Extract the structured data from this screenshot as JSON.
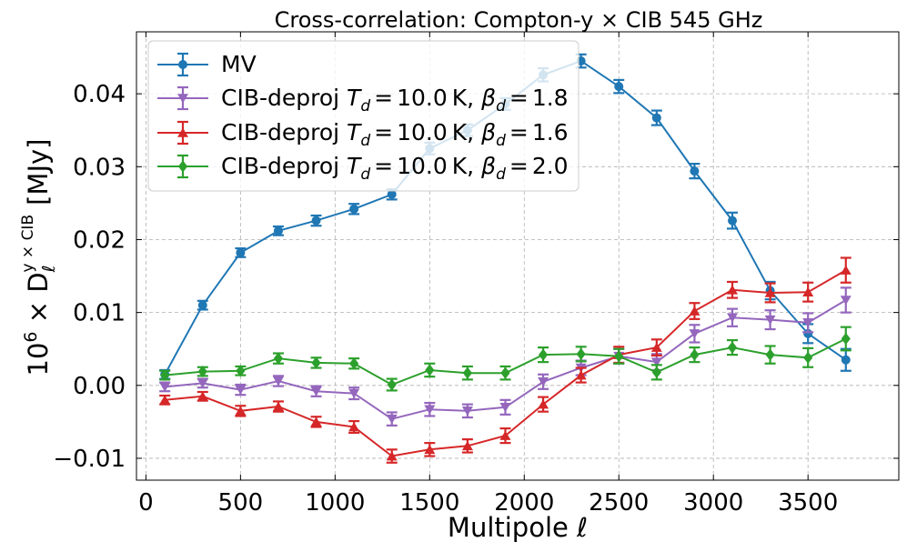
{
  "chart_data": {
    "type": "line",
    "title": "Cross-correlation: Compton-y × CIB 545 GHz",
    "xlabel": "Multipole ℓ",
    "ylabel": "10⁶ × D_ℓ^{y×CIB} [MJy]",
    "ylabel_parts": {
      "prefix": "10",
      "exp": "6",
      "times": " × D",
      "sub": "ℓ",
      "sup": "y × CIB",
      "unit": "[MJy]"
    },
    "xlim": [
      -50,
      3980
    ],
    "ylim": [
      -0.013,
      0.0485
    ],
    "grid": true,
    "legend_position": "upper-left",
    "x_ticks": [
      0,
      500,
      1000,
      1500,
      2000,
      2500,
      3000,
      3500
    ],
    "x_tick_labels": [
      "0",
      "500",
      "1000",
      "1500",
      "2000",
      "2500",
      "3000",
      "3500"
    ],
    "y_ticks": [
      -0.01,
      0.0,
      0.01,
      0.02,
      0.03,
      0.04
    ],
    "y_tick_labels": [
      "−0.01",
      "0.00",
      "0.01",
      "0.02",
      "0.03",
      "0.04"
    ],
    "x": [
      100,
      300,
      500,
      700,
      900,
      1100,
      1300,
      1500,
      1700,
      1900,
      2100,
      2300,
      2500,
      2700,
      2900,
      3100,
      3300,
      3500,
      3700
    ],
    "series": [
      {
        "name": "MV",
        "legend_label": "MV",
        "color": "#1f77b4",
        "marker": "circle",
        "values": [
          0.0015,
          0.011,
          0.0182,
          0.0212,
          0.0226,
          0.0242,
          0.0262,
          0.0325,
          0.035,
          0.0386,
          0.0426,
          0.0445,
          0.041,
          0.0367,
          0.0294,
          0.0226,
          0.013,
          0.0071,
          0.0035
        ],
        "errors": [
          0.0006,
          0.0006,
          0.0006,
          0.0006,
          0.0007,
          0.0007,
          0.0007,
          0.0008,
          0.0008,
          0.0008,
          0.0009,
          0.0009,
          0.0009,
          0.001,
          0.001,
          0.0011,
          0.0012,
          0.0013,
          0.0015
        ]
      },
      {
        "name": "CIB-deproj Td=10.0K, βd=1.8",
        "legend_prefix": "CIB-deproj ",
        "beta": "1.8",
        "color": "#9467bd",
        "marker": "triangle-down",
        "values": [
          -0.0002,
          0.0003,
          -0.0006,
          0.0006,
          -0.0008,
          -0.0011,
          -0.0046,
          -0.0033,
          -0.0035,
          -0.003,
          0.0005,
          0.0024,
          0.004,
          0.0032,
          0.0071,
          0.0093,
          0.009,
          0.0086,
          0.0117
        ],
        "errors": [
          0.0006,
          0.0006,
          0.0007,
          0.0007,
          0.0007,
          0.0008,
          0.0009,
          0.0009,
          0.0009,
          0.001,
          0.001,
          0.001,
          0.001,
          0.0011,
          0.0012,
          0.0012,
          0.0013,
          0.0013,
          0.0017
        ]
      },
      {
        "name": "CIB-deproj Td=10.0K, βd=1.6",
        "legend_prefix": "CIB-deproj ",
        "beta": "1.6",
        "color": "#d62728",
        "marker": "triangle-up",
        "values": [
          -0.002,
          -0.0015,
          -0.0035,
          -0.0029,
          -0.005,
          -0.0057,
          -0.0097,
          -0.0088,
          -0.0083,
          -0.0069,
          -0.0026,
          0.0014,
          0.0042,
          0.0052,
          0.0102,
          0.0131,
          0.0127,
          0.0128,
          0.0158
        ],
        "errors": [
          0.0006,
          0.0006,
          0.0007,
          0.0007,
          0.0007,
          0.0008,
          0.0009,
          0.0009,
          0.0009,
          0.001,
          0.001,
          0.001,
          0.0011,
          0.0011,
          0.0011,
          0.0011,
          0.0013,
          0.0013,
          0.0017
        ]
      },
      {
        "name": "CIB-deproj Td=10.0K, βd=2.0",
        "legend_prefix": "CIB-deproj ",
        "beta": "2.0",
        "color": "#2ca02c",
        "marker": "diamond",
        "values": [
          0.0014,
          0.0019,
          0.002,
          0.0037,
          0.0031,
          0.003,
          0.0001,
          0.0021,
          0.0017,
          0.0017,
          0.0042,
          0.0043,
          0.004,
          0.0018,
          0.0042,
          0.0052,
          0.0042,
          0.0038,
          0.0064
        ],
        "errors": [
          0.0006,
          0.0006,
          0.0006,
          0.0007,
          0.0007,
          0.0007,
          0.0008,
          0.0009,
          0.0009,
          0.0009,
          0.001,
          0.001,
          0.001,
          0.001,
          0.001,
          0.001,
          0.0012,
          0.0013,
          0.0016
        ]
      }
    ],
    "legend_shared": {
      "td_value": "10.0",
      "td_unit": "K",
      "td_symbol": "T",
      "td_sub": "d",
      "beta_symbol": "β",
      "beta_sub": "d",
      "equals": "=",
      "comma": ","
    }
  }
}
